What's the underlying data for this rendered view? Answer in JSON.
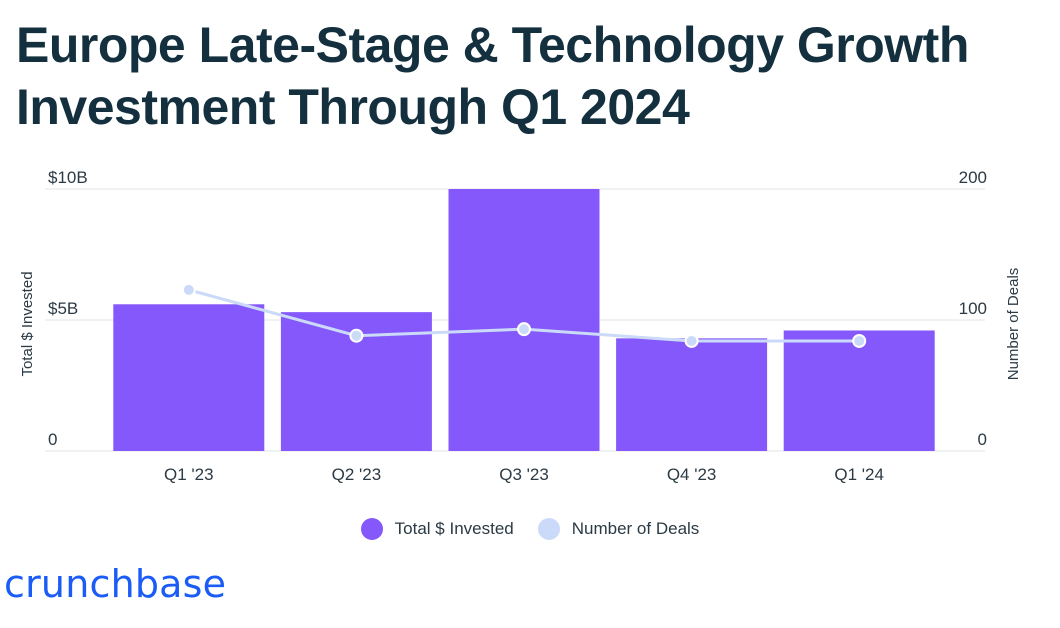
{
  "title": "Europe Late-Stage & Technology Growth Investment Through Q1 2024",
  "colors": {
    "title": "#14303f",
    "bar": "#8558fb",
    "line": "#cbdaf8",
    "axis_text": "#2b3a44",
    "grid": "#e3e6ea",
    "logo": "#1a5cf5"
  },
  "chart_data": {
    "type": "bar",
    "categories": [
      "Q1 '23",
      "Q2 '23",
      "Q3 '23",
      "Q4 '23",
      "Q1 '24"
    ],
    "series": [
      {
        "name": "Total $ Invested",
        "type": "bar",
        "axis": "left",
        "values": [
          5.6,
          5.3,
          10.0,
          4.3,
          4.6
        ]
      },
      {
        "name": "Number of Deals",
        "type": "line",
        "axis": "right",
        "values": [
          123,
          88,
          93,
          84,
          84
        ]
      }
    ],
    "y_left": {
      "label": "Total $ Invested",
      "range": [
        0,
        10
      ],
      "ticks": [
        {
          "value": 0,
          "label": "0"
        },
        {
          "value": 5,
          "label": "$5B"
        },
        {
          "value": 10,
          "label": "$10B"
        }
      ]
    },
    "y_right": {
      "label": "Number of Deals",
      "range": [
        0,
        200
      ],
      "ticks": [
        {
          "value": 0,
          "label": "0"
        },
        {
          "value": 100,
          "label": "100"
        },
        {
          "value": 200,
          "label": "200"
        }
      ]
    },
    "grid": true,
    "legend_position": "bottom-center"
  },
  "legend": {
    "items": [
      {
        "label": "Total $ Invested",
        "color": "#8558fb"
      },
      {
        "label": "Number of Deals",
        "color": "#cbdaf8"
      }
    ]
  },
  "logo": {
    "text": "crunchbase"
  }
}
